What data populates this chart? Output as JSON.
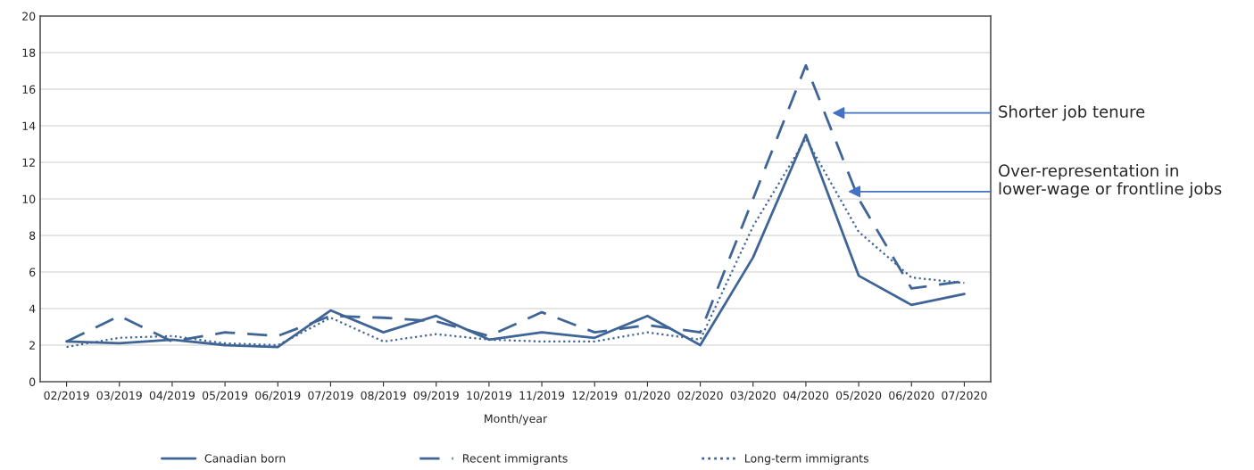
{
  "chart_data": {
    "type": "line",
    "xlabel": "Month/year",
    "categories": [
      "02/2019",
      "03/2019",
      "04/2019",
      "05/2019",
      "06/2019",
      "07/2019",
      "08/2019",
      "09/2019",
      "10/2019",
      "11/2019",
      "12/2019",
      "01/2020",
      "02/2020",
      "03/2020",
      "04/2020",
      "05/2020",
      "06/2020",
      "07/2020"
    ],
    "series": [
      {
        "name": "Canadian born",
        "color": "#3f6496",
        "line_style": "solid",
        "values": [
          2.2,
          2.1,
          2.3,
          2.0,
          1.9,
          3.9,
          2.7,
          3.6,
          2.3,
          2.7,
          2.4,
          3.6,
          2.0,
          6.8,
          13.5,
          5.8,
          4.2,
          4.8
        ]
      },
      {
        "name": "Recent immigrants",
        "color": "#3f6496",
        "line_style": "dashed",
        "values": [
          2.2,
          3.6,
          2.2,
          2.7,
          2.5,
          3.6,
          3.5,
          3.3,
          2.5,
          3.8,
          2.7,
          3.1,
          2.7,
          10.0,
          17.3,
          10.0,
          5.1,
          5.5
        ]
      },
      {
        "name": "Long-term immigrants",
        "color": "#3f6496",
        "line_style": "dotted",
        "values": [
          1.9,
          2.4,
          2.5,
          2.1,
          2.0,
          3.5,
          2.2,
          2.6,
          2.3,
          2.2,
          2.2,
          2.7,
          2.3,
          8.5,
          13.3,
          8.2,
          5.7,
          5.4
        ]
      }
    ],
    "ylim": [
      0,
      20
    ],
    "yticks": [
      0,
      2,
      4,
      6,
      8,
      10,
      12,
      14,
      16,
      18,
      20
    ],
    "grid": "y",
    "legend": "bottom",
    "marker": "none",
    "annotations": [
      "Shorter job tenure",
      "Over-representation in lower-wage or frontline jobs"
    ]
  }
}
